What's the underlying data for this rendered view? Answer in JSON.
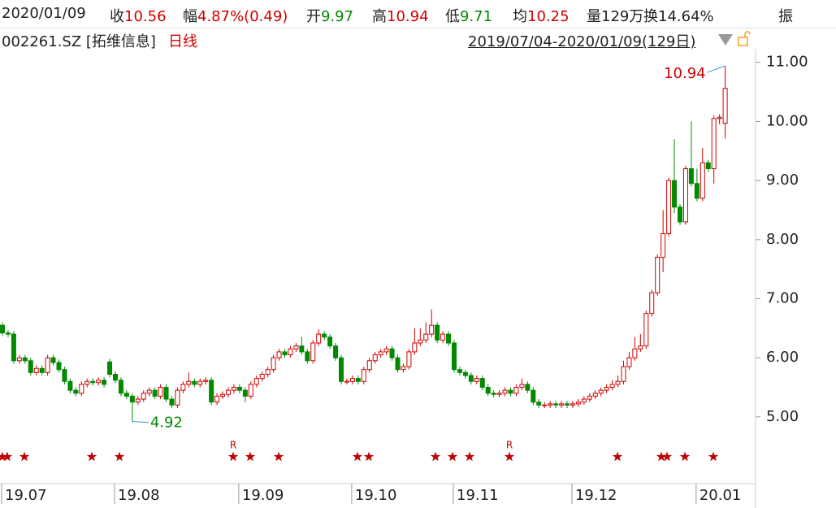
{
  "quote": {
    "date": "2020/01/09",
    "items": [
      {
        "label": "收",
        "value": "10.56",
        "color": "#d00000"
      },
      {
        "label": "幅",
        "value": "4.87%(0.49)",
        "color": "#d00000"
      },
      {
        "label": "开",
        "value": "9.97",
        "color": "#008a00"
      },
      {
        "label": "高",
        "value": "10.94",
        "color": "#d00000"
      },
      {
        "label": "低",
        "value": "9.71",
        "color": "#008a00"
      },
      {
        "label": "均",
        "value": "10.25",
        "color": "#d00000"
      },
      {
        "label": "量",
        "value": "129万",
        "color": "#222222"
      },
      {
        "label": "换",
        "value": "14.64%",
        "color": "#222222"
      },
      {
        "label": "振"
      }
    ]
  },
  "header": {
    "symbol": "002261.SZ [拓维信息]",
    "period": "日线",
    "range": "2019/07/04-2020/01/09(129日)"
  },
  "chart_data": {
    "type": "candlestick",
    "up_color": "#d00000",
    "down_color": "#008a00",
    "ylim": [
      3.87,
      11.23
    ],
    "yticks": [
      {
        "value": 5,
        "label": "5.00"
      },
      {
        "value": 6,
        "label": "6.00"
      },
      {
        "value": 7,
        "label": "7.00"
      },
      {
        "value": 8,
        "label": "8.00"
      },
      {
        "value": 9,
        "label": "9.00"
      },
      {
        "value": 10,
        "label": "10.00"
      },
      {
        "value": 11,
        "label": "11.00"
      }
    ],
    "xticks": [
      {
        "value": 0,
        "label": "19.07"
      },
      {
        "value": 20,
        "label": "19.08"
      },
      {
        "value": 42,
        "label": "19.09"
      },
      {
        "value": 62,
        "label": "19.10"
      },
      {
        "value": 80,
        "label": "19.11"
      },
      {
        "value": 101,
        "label": "19.12"
      },
      {
        "value": 123,
        "label": "20.01"
      }
    ],
    "flags": [
      "R",
      "R"
    ],
    "open": [
      6.55,
      6.42,
      6.4,
      5.95,
      6.0,
      5.95,
      5.75,
      5.82,
      5.75,
      6.0,
      5.92,
      5.8,
      5.6,
      5.45,
      5.4,
      5.55,
      5.6,
      5.58,
      5.62,
      5.93,
      5.72,
      5.62,
      5.4,
      5.35,
      5.25,
      5.3,
      5.4,
      5.45,
      5.35,
      5.5,
      5.3,
      5.2,
      5.45,
      5.55,
      5.6,
      5.55,
      5.6,
      5.62,
      5.25,
      5.35,
      5.38,
      5.45,
      5.5,
      5.45,
      5.35,
      5.55,
      5.65,
      5.72,
      5.8,
      6.0,
      6.1,
      6.05,
      6.15,
      6.2,
      6.1,
      5.95,
      6.25,
      6.4,
      6.35,
      6.2,
      6.0,
      5.6,
      5.6,
      5.65,
      5.6,
      5.8,
      5.95,
      6.05,
      6.1,
      6.15,
      6.0,
      5.8,
      5.85,
      6.1,
      6.25,
      6.3,
      6.4,
      6.55,
      6.3,
      6.4,
      6.25,
      5.8,
      5.75,
      5.7,
      5.6,
      5.65,
      5.5,
      5.4,
      5.38,
      5.4,
      5.45,
      5.4,
      5.5,
      5.55,
      5.45,
      5.25,
      5.2,
      5.2,
      5.22,
      5.2,
      5.22,
      5.2,
      5.22,
      5.25,
      5.3,
      5.35,
      5.4,
      5.45,
      5.5,
      5.55,
      5.6,
      5.85,
      6.0,
      6.15,
      6.2,
      6.75,
      7.1,
      7.7,
      8.1,
      9.0,
      8.55,
      8.3,
      9.2,
      8.95,
      8.7,
      9.3,
      9.2,
      10.05,
      9.97
    ],
    "high": [
      6.6,
      6.47,
      6.45,
      6.05,
      6.05,
      6.0,
      5.87,
      5.87,
      6.05,
      6.05,
      5.97,
      5.85,
      5.65,
      5.5,
      5.6,
      5.65,
      5.65,
      5.67,
      5.67,
      5.98,
      5.77,
      5.67,
      5.45,
      5.4,
      5.35,
      5.45,
      5.5,
      5.5,
      5.55,
      5.55,
      5.35,
      5.5,
      5.6,
      5.75,
      5.65,
      5.65,
      5.67,
      5.67,
      5.4,
      5.43,
      5.5,
      5.55,
      5.55,
      5.5,
      5.6,
      5.7,
      5.77,
      5.85,
      6.05,
      6.15,
      6.15,
      6.2,
      6.25,
      6.35,
      6.15,
      6.3,
      6.48,
      6.45,
      6.4,
      6.25,
      6.05,
      5.65,
      5.7,
      5.7,
      5.85,
      6.0,
      6.1,
      6.15,
      6.2,
      6.2,
      6.05,
      5.9,
      6.15,
      6.5,
      6.5,
      6.6,
      6.82,
      6.6,
      6.45,
      6.45,
      6.3,
      5.85,
      5.8,
      5.75,
      5.7,
      5.7,
      5.55,
      5.45,
      5.45,
      5.5,
      5.5,
      5.55,
      5.65,
      5.6,
      5.5,
      5.3,
      5.25,
      5.27,
      5.27,
      5.27,
      5.27,
      5.27,
      5.3,
      5.35,
      5.4,
      5.45,
      5.5,
      5.55,
      5.62,
      5.7,
      5.95,
      6.1,
      6.35,
      6.4,
      6.8,
      7.15,
      7.75,
      8.5,
      9.05,
      9.7,
      8.6,
      9.25,
      10.0,
      9.2,
      9.55,
      9.35,
      10.1,
      10.12,
      10.94
    ],
    "low": [
      6.37,
      6.35,
      5.9,
      5.9,
      5.9,
      5.7,
      5.7,
      5.7,
      5.7,
      5.87,
      5.75,
      5.55,
      5.4,
      5.35,
      5.35,
      5.5,
      5.53,
      5.53,
      5.5,
      5.67,
      5.57,
      5.35,
      5.3,
      4.92,
      5.2,
      5.25,
      5.35,
      5.3,
      5.3,
      5.25,
      5.15,
      5.15,
      5.4,
      5.5,
      5.5,
      5.5,
      5.55,
      5.2,
      5.2,
      5.3,
      5.33,
      5.4,
      5.4,
      5.25,
      5.3,
      5.5,
      5.6,
      5.67,
      5.75,
      5.95,
      6.0,
      6.0,
      6.1,
      6.05,
      5.9,
      5.9,
      6.2,
      6.3,
      6.15,
      5.95,
      5.55,
      5.55,
      5.55,
      5.55,
      5.55,
      5.75,
      5.9,
      6.0,
      6.05,
      5.95,
      5.75,
      5.75,
      5.8,
      6.05,
      6.2,
      6.25,
      6.35,
      6.25,
      6.25,
      6.2,
      5.75,
      5.7,
      5.65,
      5.55,
      5.55,
      5.45,
      5.35,
      5.33,
      5.33,
      5.35,
      5.35,
      5.35,
      5.45,
      5.4,
      5.2,
      5.15,
      5.15,
      5.15,
      5.15,
      5.15,
      5.15,
      5.15,
      5.17,
      5.2,
      5.25,
      5.3,
      5.35,
      5.4,
      5.45,
      5.5,
      5.55,
      5.8,
      5.95,
      6.1,
      6.15,
      6.7,
      7.05,
      7.45,
      8.05,
      8.45,
      8.25,
      8.25,
      8.9,
      8.65,
      8.65,
      9.15,
      8.95,
      9.95,
      9.71
    ],
    "close": [
      6.42,
      6.4,
      5.95,
      6.0,
      5.95,
      5.75,
      5.82,
      5.75,
      6.0,
      5.92,
      5.8,
      5.6,
      5.45,
      5.4,
      5.55,
      5.6,
      5.58,
      5.62,
      5.55,
      5.72,
      5.62,
      5.4,
      5.35,
      5.25,
      5.3,
      5.4,
      5.45,
      5.35,
      5.5,
      5.3,
      5.2,
      5.45,
      5.55,
      5.6,
      5.55,
      5.6,
      5.62,
      5.25,
      5.35,
      5.38,
      5.45,
      5.5,
      5.45,
      5.35,
      5.55,
      5.65,
      5.72,
      5.8,
      6.0,
      6.1,
      6.05,
      6.15,
      6.2,
      6.1,
      5.95,
      6.25,
      6.4,
      6.35,
      6.2,
      6.0,
      5.6,
      5.6,
      5.65,
      5.6,
      5.8,
      5.95,
      6.05,
      6.1,
      6.15,
      6.0,
      5.8,
      5.85,
      6.1,
      6.25,
      6.3,
      6.4,
      6.55,
      6.3,
      6.4,
      6.25,
      5.8,
      5.75,
      5.7,
      5.6,
      5.65,
      5.5,
      5.4,
      5.38,
      5.4,
      5.45,
      5.4,
      5.5,
      5.55,
      5.45,
      5.25,
      5.2,
      5.2,
      5.22,
      5.2,
      5.22,
      5.2,
      5.22,
      5.25,
      5.3,
      5.35,
      5.4,
      5.45,
      5.5,
      5.55,
      5.6,
      5.85,
      6.0,
      6.15,
      6.2,
      6.75,
      7.1,
      7.7,
      8.1,
      9.0,
      8.55,
      8.3,
      9.2,
      8.95,
      8.7,
      9.3,
      9.2,
      10.05,
      10.07,
      10.56
    ]
  }
}
